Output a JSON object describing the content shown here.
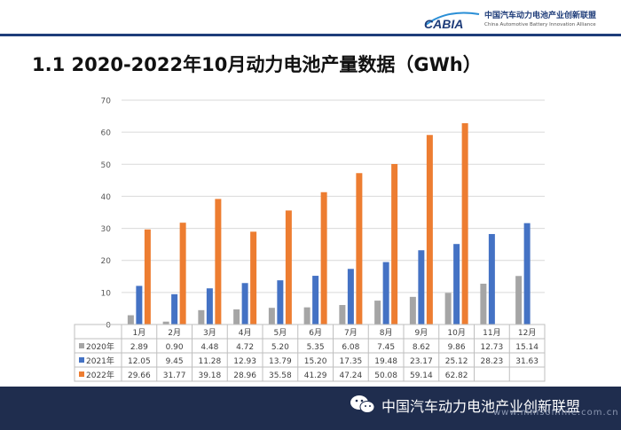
{
  "header": {
    "logo_mark": "CABIA",
    "logo_cn": "中国汽车动力电池产业创新联盟",
    "logo_en": "China Automotive Battery Innovation Alliance"
  },
  "page_title": "1.1 2020-2022年10月动力电池产量数据（GWh）",
  "footer": {
    "org_name": "中国汽车动力电池产业创新联盟",
    "watermark": "www.mmsonline.com.cn"
  },
  "colors": {
    "2020年": "#a5a5a5",
    "2021年": "#4472c4",
    "2022年": "#ed7d31",
    "header_rule": "#1f3d7a",
    "footer_bg": "#1f2d4e"
  },
  "chart_data": {
    "type": "bar",
    "categories": [
      "1月",
      "2月",
      "3月",
      "4月",
      "5月",
      "6月",
      "7月",
      "8月",
      "9月",
      "10月",
      "11月",
      "12月"
    ],
    "series": [
      {
        "name": "2020年",
        "values": [
          2.89,
          0.9,
          4.48,
          4.72,
          5.2,
          5.35,
          6.08,
          7.45,
          8.62,
          9.86,
          12.73,
          15.14
        ]
      },
      {
        "name": "2021年",
        "values": [
          12.05,
          9.45,
          11.28,
          12.93,
          13.79,
          15.2,
          17.35,
          19.48,
          23.17,
          25.12,
          28.23,
          31.63
        ]
      },
      {
        "name": "2022年",
        "values": [
          29.66,
          31.77,
          39.18,
          28.96,
          35.58,
          41.29,
          47.24,
          50.08,
          59.14,
          62.82,
          null,
          null
        ]
      }
    ],
    "table": [
      [
        "2.89",
        "0.90",
        "4.48",
        "4.72",
        "5.20",
        "5.35",
        "6.08",
        "7.45",
        "8.62",
        "9.86",
        "12.73",
        "15.14"
      ],
      [
        "12.05",
        "9.45",
        "11.28",
        "12.93",
        "13.79",
        "15.20",
        "17.35",
        "19.48",
        "23.17",
        "25.12",
        "28.23",
        "31.63"
      ],
      [
        "29.66",
        "31.77",
        "39.18",
        "28.96",
        "35.58",
        "41.29",
        "47.24",
        "50.08",
        "59.14",
        "62.82",
        "",
        ""
      ]
    ],
    "yticks": [
      "0",
      "10",
      "20",
      "30",
      "40",
      "50",
      "60",
      "70"
    ],
    "ylim": [
      0,
      70
    ],
    "grid": true,
    "legend": "data-table"
  }
}
